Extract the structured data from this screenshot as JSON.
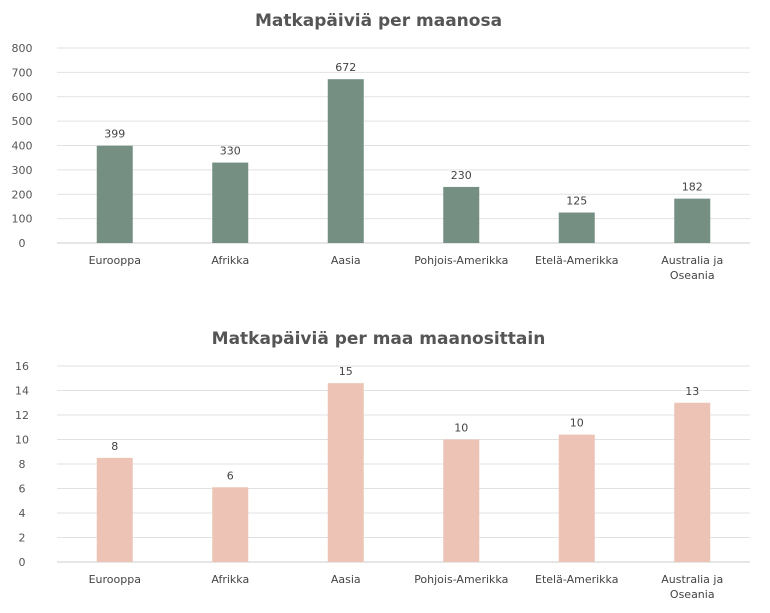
{
  "chart_data": [
    {
      "type": "bar",
      "title": "Matkapäiviä per maanosa",
      "categories": [
        "Eurooppa",
        "Afrikka",
        "Aasia",
        "Pohjois-Amerikka",
        "Etelä-Amerikka",
        "Australia ja Oseania"
      ],
      "values": [
        399,
        330,
        672,
        230,
        125,
        182
      ],
      "data_labels": [
        "399",
        "330",
        "672",
        "230",
        "125",
        "182"
      ],
      "ylim": [
        0,
        800
      ],
      "yticks": [
        0,
        100,
        200,
        300,
        400,
        500,
        600,
        700,
        800
      ],
      "grid": true,
      "color": "#758f83"
    },
    {
      "type": "bar",
      "title": "Matkapäiviä per maa maanosittain",
      "categories": [
        "Eurooppa",
        "Afrikka",
        "Aasia",
        "Pohjois-Amerikka",
        "Etelä-Amerikka",
        "Australia ja Oseania"
      ],
      "values": [
        8.5,
        6.1,
        14.6,
        10.0,
        10.4,
        13.0
      ],
      "data_labels": [
        "8",
        "6",
        "15",
        "10",
        "10",
        "13"
      ],
      "ylim": [
        0,
        16
      ],
      "yticks": [
        0,
        2,
        4,
        6,
        8,
        10,
        12,
        14,
        16
      ],
      "grid": true,
      "color": "#ecc3b5"
    }
  ]
}
